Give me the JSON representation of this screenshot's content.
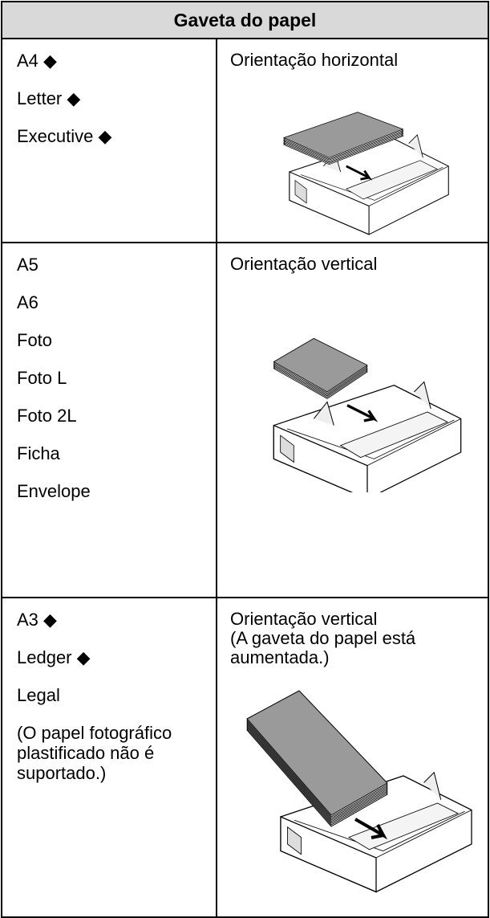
{
  "table": {
    "header": "Gaveta do papel",
    "rows": [
      {
        "sizes": [
          "A4 ◆",
          "Letter ◆",
          "Executive ◆"
        ],
        "orientation": "Orientação horizontal"
      },
      {
        "sizes": [
          "A5",
          "A6",
          "Foto",
          "Foto L",
          "Foto 2L",
          "Ficha",
          "Envelope"
        ],
        "orientation": "Orientação vertical"
      },
      {
        "sizes": [
          "A3 ◆",
          "Ledger ◆",
          "Legal",
          "(O papel fotográfico plastificado não é suportado.)"
        ],
        "orientation": "Orientação vertical",
        "note": "(A gaveta do papel está aumentada.)"
      }
    ]
  }
}
